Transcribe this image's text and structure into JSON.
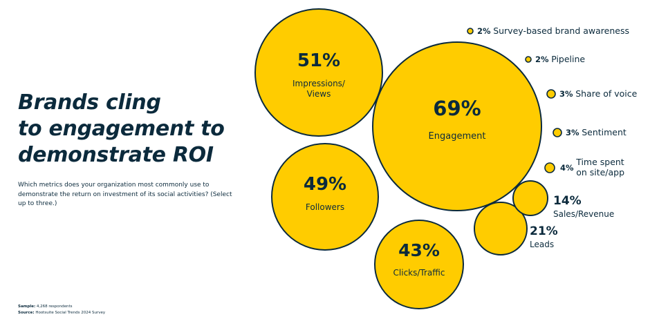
{
  "page": {
    "title_lines": [
      "Brands cling",
      "to engagement to",
      "demonstrate ROI"
    ],
    "subtitle": "Which metrics does your organization most commonly use to demonstrate the return on investment of its social activities? (Select up to three.)",
    "sample_label": "Sample:",
    "sample_value": "4,268 respondents",
    "source_label": "Source:",
    "source_value": "Hootsuite Social Trends 2024 Survey"
  },
  "colors": {
    "bubble_fill": "#FFCC00",
    "bubble_stroke": "#0b2a3c",
    "text": "#0b2a3c",
    "background": "#ffffff"
  },
  "chart_data": {
    "type": "bubble",
    "title": "Brands cling to engagement to demonstrate ROI",
    "unit": "% of respondents",
    "series": [
      {
        "name": "Engagement",
        "value": 69,
        "value_label": "69%",
        "label_lines": [
          "Engagement"
        ]
      },
      {
        "name": "Impressions/Views",
        "value": 51,
        "value_label": "51%",
        "label_lines": [
          "Impressions/",
          "Views"
        ]
      },
      {
        "name": "Followers",
        "value": 49,
        "value_label": "49%",
        "label_lines": [
          "Followers"
        ]
      },
      {
        "name": "Clicks/Traffic",
        "value": 43,
        "value_label": "43%",
        "label_lines": [
          "Clicks/Traffic"
        ]
      },
      {
        "name": "Leads",
        "value": 21,
        "value_label": "21%",
        "label_lines": [
          "Leads"
        ]
      },
      {
        "name": "Sales/Revenue",
        "value": 14,
        "value_label": "14%",
        "label_lines": [
          "Sales/Revenue"
        ]
      },
      {
        "name": "Time spent on site/app",
        "value": 4,
        "value_label": "4%",
        "label_lines": [
          "Time spent",
          "on site/app"
        ]
      },
      {
        "name": "Sentiment",
        "value": 3,
        "value_label": "3%",
        "label_lines": [
          "Sentiment"
        ]
      },
      {
        "name": "Share of voice",
        "value": 3,
        "value_label": "3%",
        "label_lines": [
          "Share of voice"
        ]
      },
      {
        "name": "Pipeline",
        "value": 2,
        "value_label": "2%",
        "label_lines": [
          "Pipeline"
        ]
      },
      {
        "name": "Survey-based brand awareness",
        "value": 2,
        "value_label": "2%",
        "label_lines": [
          "Survey-based brand awareness"
        ]
      }
    ]
  }
}
